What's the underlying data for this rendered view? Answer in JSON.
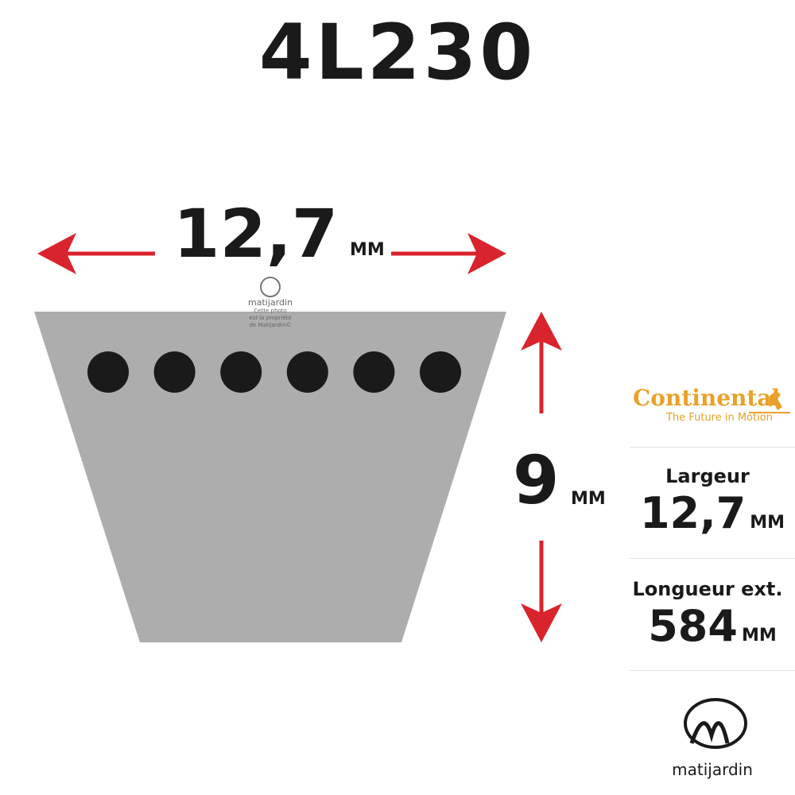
{
  "title": "4L230",
  "top_dimension": {
    "value": "12,7",
    "unit": "MM"
  },
  "height_dimension": {
    "value": "9",
    "unit": "MM"
  },
  "watermark": {
    "brand": "matijardin",
    "line1": "Cette photo",
    "line2": "est la propriété",
    "line3": "de Matijardin©"
  },
  "belt": {
    "color": "#adadad",
    "cords": 6
  },
  "arrow_color": "#d9232d",
  "brand": {
    "name": "Continental",
    "tagline": "The Future in Motion",
    "color": "#e9a12a"
  },
  "specs": [
    {
      "label": "Largeur",
      "value": "12,7",
      "unit": "MM"
    },
    {
      "label": "Longueur ext.",
      "value": "584",
      "unit": "MM"
    }
  ],
  "footer_logo": {
    "text": "matijardin"
  }
}
